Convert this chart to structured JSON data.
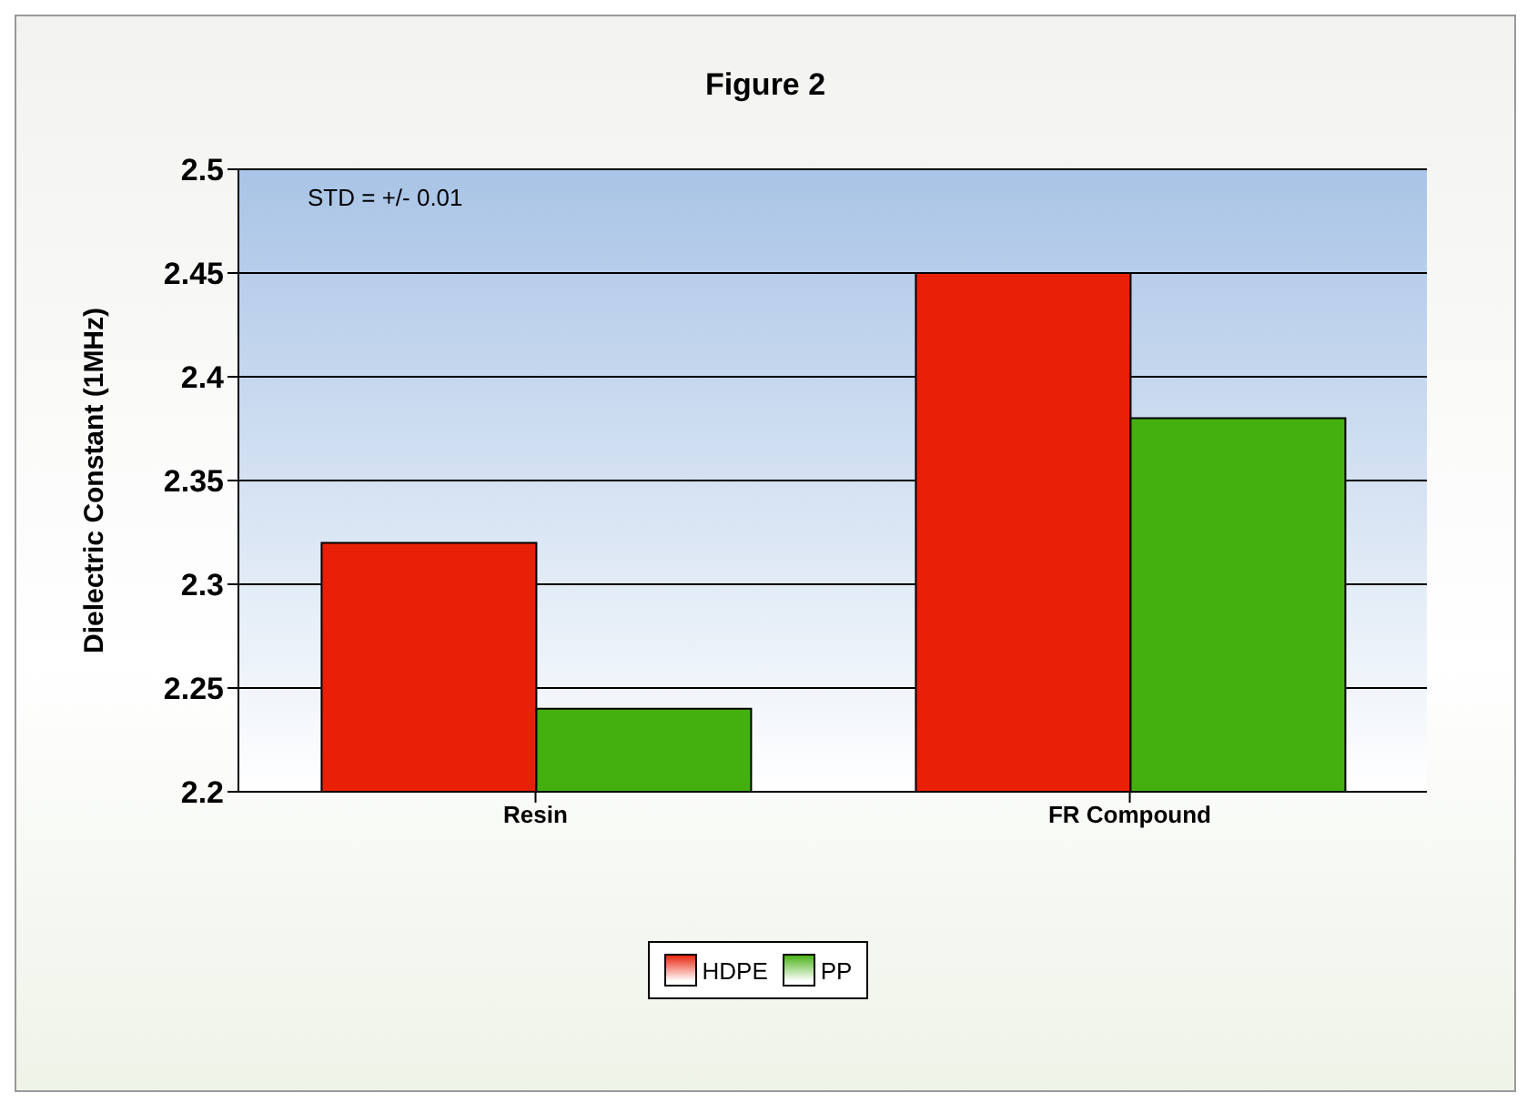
{
  "chart_data": {
    "type": "bar",
    "title": "Figure 2",
    "ylabel": "Dielectric Constant (1MHz)",
    "categories": [
      "Resin",
      "FR Compound"
    ],
    "series": [
      {
        "name": "HDPE",
        "color": "#e82008",
        "values": [
          2.32,
          2.45
        ]
      },
      {
        "name": "PP",
        "color": "#44b010",
        "values": [
          2.24,
          2.38
        ]
      }
    ],
    "ylim": [
      2.2,
      2.5
    ],
    "yticks": [
      2.2,
      2.25,
      2.3,
      2.35,
      2.4,
      2.45,
      2.5
    ],
    "grid": "y",
    "legend": "bottom",
    "annotations": [
      "STD = +/- 0.01"
    ]
  }
}
